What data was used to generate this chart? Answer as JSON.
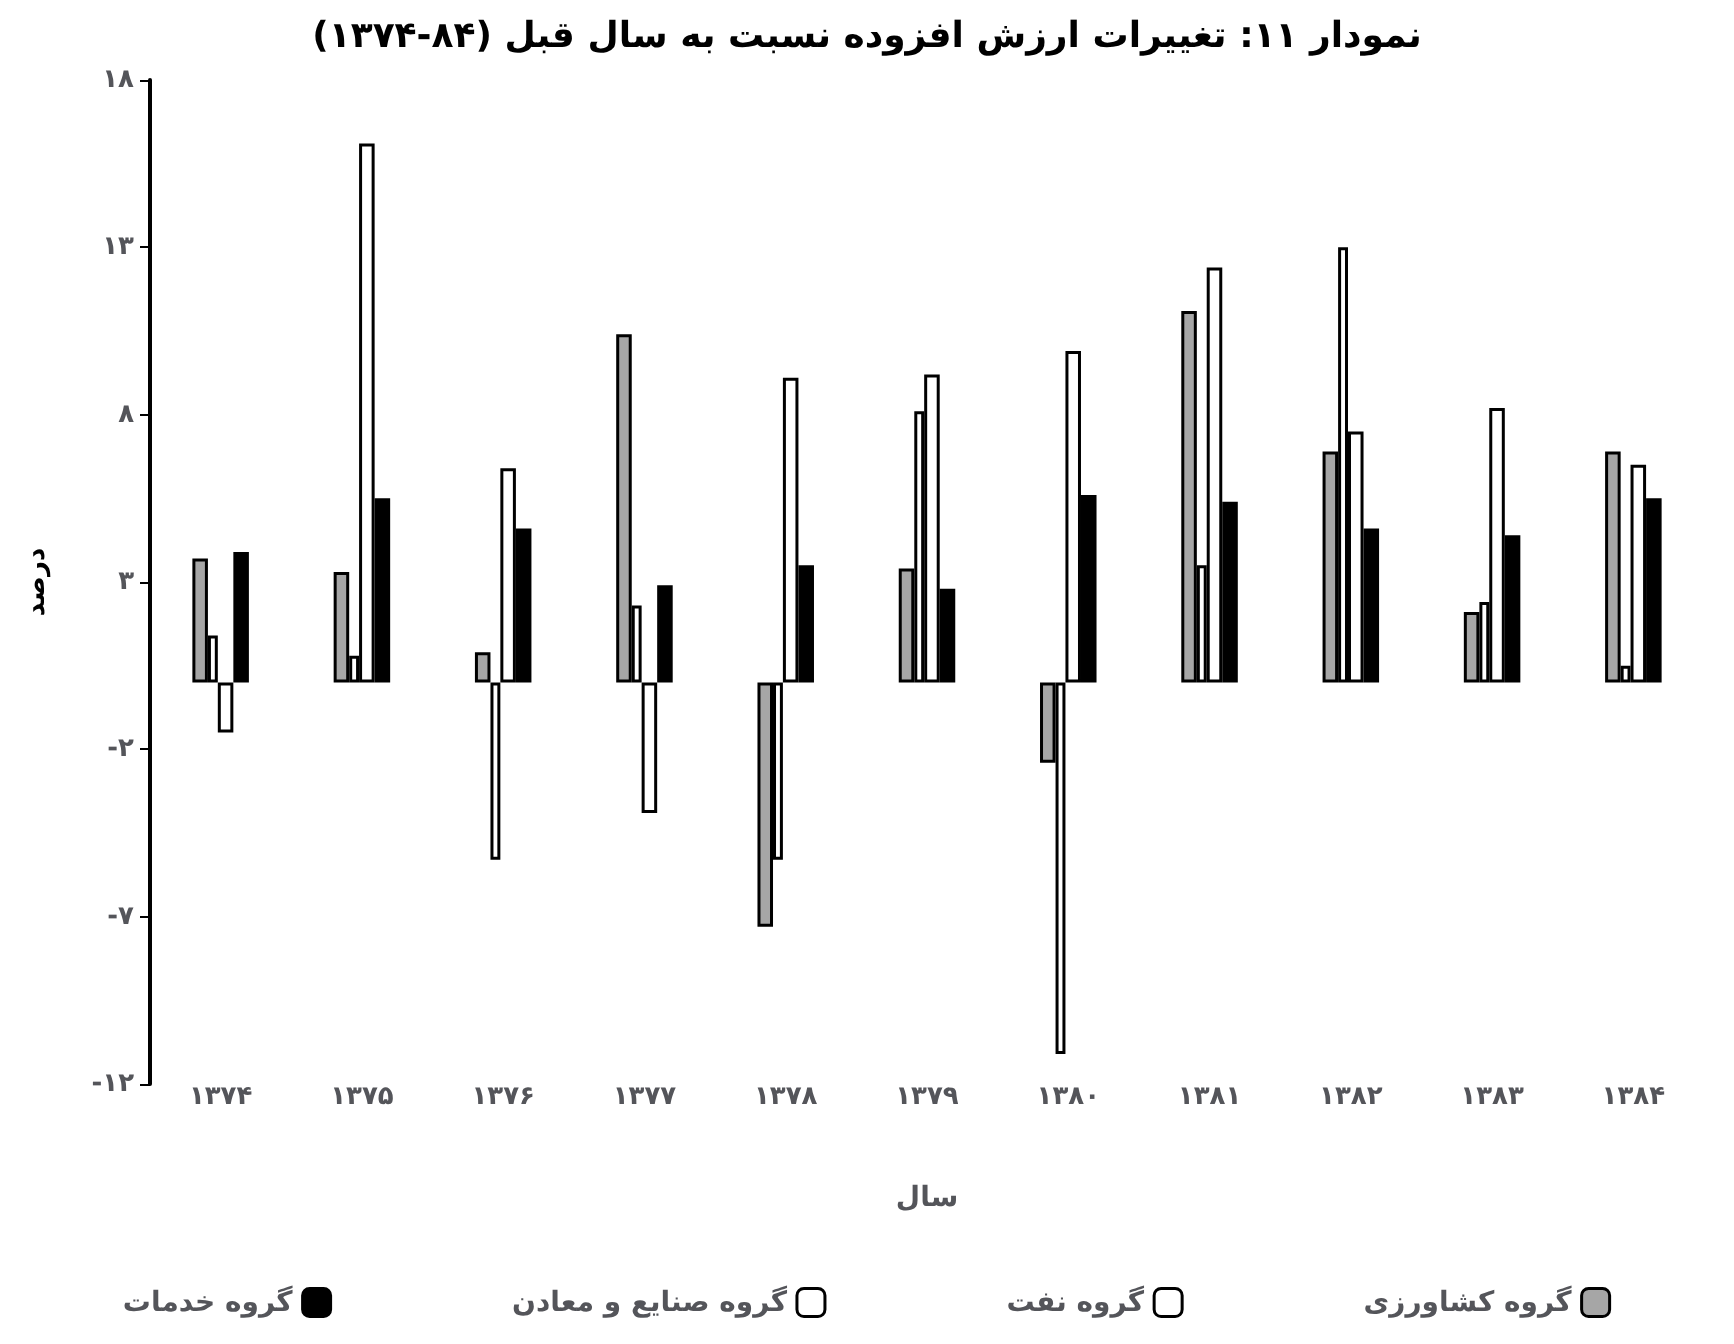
{
  "chart_data": {
    "type": "bar",
    "title": "نمودار ۱۱: تغییرات ارزش افزوده نسبت به سال قبل (۸۴-۱۳۷۴)",
    "xlabel": "سال",
    "ylabel": "درصد",
    "categories": [
      "۱۳۷۴",
      "۱۳۷۵",
      "۱۳۷۶",
      "۱۳۷۷",
      "۱۳۷۸",
      "۱۳۷۹",
      "۱۳۸۰",
      "۱۳۸۱",
      "۱۳۸۲",
      "۱۳۸۳",
      "۱۳۸۴"
    ],
    "series": [
      {
        "name": "گروه کشاورزی",
        "color": "#a6a6a6",
        "values": [
          3.7,
          3.3,
          0.9,
          10.4,
          -7.3,
          3.4,
          -2.4,
          11.1,
          6.9,
          2.1,
          6.9
        ]
      },
      {
        "name": "گروه نفت",
        "color": "#ffffff",
        "values": [
          1.4,
          0.8,
          -5.3,
          2.3,
          -5.3,
          8.1,
          -11.1,
          3.5,
          13.0,
          2.4,
          0.5
        ]
      },
      {
        "name": "گروه صنایع و معادن",
        "color": "#ffffff",
        "values": [
          -1.5,
          16.1,
          6.4,
          -3.9,
          9.1,
          9.2,
          9.9,
          12.4,
          7.5,
          8.2,
          6.5
        ]
      },
      {
        "name": "گروه خدمات",
        "color": "#000000",
        "values": [
          3.9,
          5.5,
          4.6,
          2.9,
          3.5,
          2.8,
          5.6,
          5.4,
          4.6,
          4.4,
          5.5
        ]
      }
    ],
    "ylim": [
      -12,
      18
    ],
    "yticks": [
      {
        "value": -12,
        "label": "-۱۲"
      },
      {
        "value": -7,
        "label": "-۷"
      },
      {
        "value": -2,
        "label": "-۲"
      },
      {
        "value": 3,
        "label": "۳"
      },
      {
        "value": 8,
        "label": "۸"
      },
      {
        "value": 13,
        "label": "۱۳"
      },
      {
        "value": 18,
        "label": "۱۸"
      }
    ],
    "grid": false,
    "legend": "bottom"
  }
}
